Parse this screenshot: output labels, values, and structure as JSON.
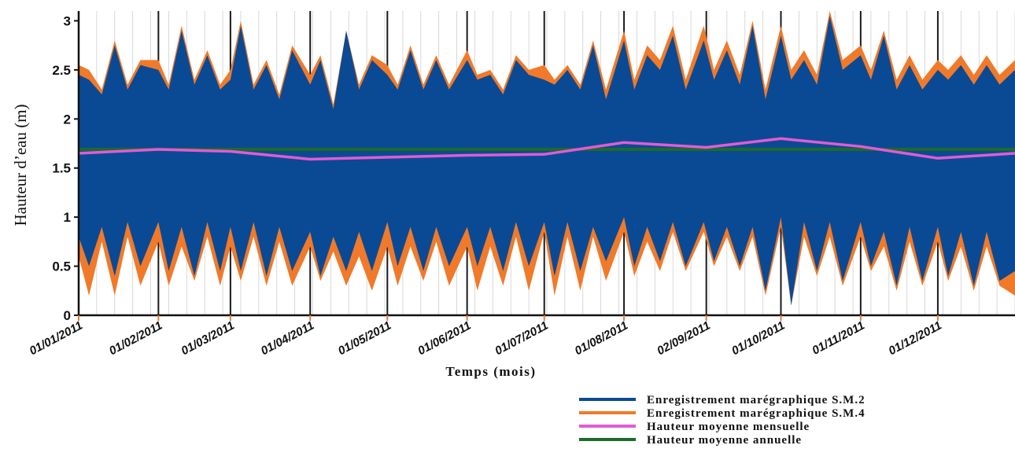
{
  "chart_data": {
    "type": "area",
    "xlabel": "Temps (mois)",
    "ylabel": "Hauteur d’eau (m)",
    "ylim": [
      0,
      3.1
    ],
    "yticks": [
      0,
      0.5,
      1,
      1.5,
      2,
      2.5,
      3
    ],
    "ytick_labels": [
      "0",
      "0.5",
      "1",
      "1.5",
      "2",
      "2.5",
      "3"
    ],
    "x_start": "01/01/2011",
    "x_end": "31/12/2011",
    "xtick_labels": [
      "01/01/2011",
      "01/02/2011",
      "01/03/2011",
      "01/04/2011",
      "01/05/2011",
      "01/06/2011",
      "01/07/2011",
      "01/08/2011",
      "02/09/2011",
      "01/10/2011",
      "01/11/2011",
      "01/12/2011"
    ],
    "legend_position": "bottom-right",
    "grid": "vertical",
    "series": [
      {
        "name": "Enregistrement marégraphique S.M.2",
        "color": "#0a4a94",
        "x": [
          "01/01/2011",
          "05/01/2011",
          "10/01/2011",
          "15/01/2011",
          "20/01/2011",
          "25/01/2011",
          "01/02/2011",
          "05/02/2011",
          "10/02/2011",
          "15/02/2011",
          "20/02/2011",
          "25/02/2011",
          "01/03/2011",
          "05/03/2011",
          "10/03/2011",
          "15/03/2011",
          "20/03/2011",
          "25/03/2011",
          "01/04/2011",
          "05/04/2011",
          "10/04/2011",
          "15/04/2011",
          "20/04/2011",
          "25/04/2011",
          "01/05/2011",
          "05/05/2011",
          "10/05/2011",
          "15/05/2011",
          "20/05/2011",
          "25/05/2011",
          "01/06/2011",
          "05/06/2011",
          "10/06/2011",
          "15/06/2011",
          "20/06/2011",
          "25/06/2011",
          "01/07/2011",
          "05/07/2011",
          "10/07/2011",
          "15/07/2011",
          "20/07/2011",
          "25/07/2011",
          "01/08/2011",
          "05/08/2011",
          "10/08/2011",
          "15/08/2011",
          "20/08/2011",
          "25/08/2011",
          "01/09/2011",
          "05/09/2011",
          "10/09/2011",
          "15/09/2011",
          "20/09/2011",
          "25/09/2011",
          "01/10/2011",
          "05/10/2011",
          "10/10/2011",
          "15/10/2011",
          "20/10/2011",
          "25/10/2011",
          "01/11/2011",
          "05/11/2011",
          "10/11/2011",
          "15/11/2011",
          "20/11/2011",
          "25/11/2011",
          "01/12/2011",
          "05/12/2011",
          "10/12/2011",
          "15/12/2011",
          "20/12/2011",
          "25/12/2011",
          "31/12/2011"
        ],
        "high": [
          2.45,
          2.4,
          2.25,
          2.75,
          2.3,
          2.55,
          2.5,
          2.3,
          2.9,
          2.35,
          2.65,
          2.3,
          2.4,
          2.95,
          2.3,
          2.55,
          2.2,
          2.7,
          2.35,
          2.6,
          2.1,
          2.9,
          2.3,
          2.6,
          2.45,
          2.3,
          2.7,
          2.3,
          2.6,
          2.3,
          2.6,
          2.4,
          2.45,
          2.25,
          2.6,
          2.45,
          2.4,
          2.35,
          2.5,
          2.3,
          2.75,
          2.2,
          2.8,
          2.3,
          2.65,
          2.5,
          2.85,
          2.3,
          2.8,
          2.4,
          2.7,
          2.35,
          2.95,
          2.2,
          2.85,
          2.4,
          2.6,
          2.35,
          3.05,
          2.5,
          2.65,
          2.4,
          2.85,
          2.3,
          2.55,
          2.3,
          2.5,
          2.4,
          2.55,
          2.35,
          2.55,
          2.35,
          2.5
        ],
        "low": [
          0.8,
          0.5,
          0.9,
          0.4,
          0.95,
          0.5,
          0.95,
          0.45,
          0.9,
          0.4,
          0.95,
          0.45,
          0.9,
          0.45,
          0.95,
          0.4,
          0.9,
          0.45,
          0.85,
          0.4,
          0.8,
          0.45,
          0.85,
          0.45,
          0.95,
          0.5,
          0.9,
          0.45,
          0.9,
          0.5,
          0.9,
          0.5,
          0.9,
          0.45,
          0.95,
          0.5,
          0.95,
          0.4,
          0.95,
          0.45,
          0.9,
          0.55,
          1.0,
          0.5,
          0.9,
          0.55,
          0.95,
          0.5,
          0.95,
          0.55,
          0.9,
          0.5,
          0.9,
          0.25,
          1.0,
          0.1,
          0.95,
          0.45,
          0.95,
          0.35,
          0.95,
          0.5,
          0.85,
          0.3,
          0.9,
          0.35,
          0.9,
          0.4,
          0.85,
          0.3,
          0.85,
          0.35,
          0.45
        ]
      },
      {
        "name": "Enregistrement marégraphique S.M.4",
        "color": "#f07a2a",
        "x": [
          "01/01/2011",
          "05/01/2011",
          "10/01/2011",
          "15/01/2011",
          "20/01/2011",
          "25/01/2011",
          "01/02/2011",
          "05/02/2011",
          "10/02/2011",
          "15/02/2011",
          "20/02/2011",
          "25/02/2011",
          "01/03/2011",
          "05/03/2011",
          "10/03/2011",
          "15/03/2011",
          "20/03/2011",
          "25/03/2011",
          "01/04/2011",
          "05/04/2011",
          "10/04/2011",
          "15/04/2011",
          "20/04/2011",
          "25/04/2011",
          "01/05/2011",
          "05/05/2011",
          "10/05/2011",
          "15/05/2011",
          "20/05/2011",
          "25/05/2011",
          "01/06/2011",
          "05/06/2011",
          "10/06/2011",
          "15/06/2011",
          "20/06/2011",
          "25/06/2011",
          "01/07/2011",
          "05/07/2011",
          "10/07/2011",
          "15/07/2011",
          "20/07/2011",
          "25/07/2011",
          "01/08/2011",
          "05/08/2011",
          "10/08/2011",
          "15/08/2011",
          "20/08/2011",
          "25/08/2011",
          "01/09/2011",
          "05/09/2011",
          "10/09/2011",
          "15/09/2011",
          "20/09/2011",
          "25/09/2011",
          "01/10/2011",
          "05/10/2011",
          "10/10/2011",
          "15/10/2011",
          "20/10/2011",
          "25/10/2011",
          "01/11/2011",
          "05/11/2011",
          "10/11/2011",
          "15/11/2011",
          "20/11/2011",
          "25/11/2011",
          "01/12/2011",
          "05/12/2011",
          "10/12/2011",
          "15/12/2011",
          "20/12/2011",
          "25/12/2011",
          "31/12/2011"
        ],
        "high": [
          2.55,
          2.5,
          2.3,
          2.8,
          2.35,
          2.6,
          2.6,
          2.35,
          2.95,
          2.4,
          2.7,
          2.35,
          2.5,
          3.0,
          2.35,
          2.6,
          2.25,
          2.75,
          2.45,
          2.65,
          2.15,
          2.9,
          2.35,
          2.65,
          2.55,
          2.35,
          2.75,
          2.35,
          2.65,
          2.35,
          2.7,
          2.45,
          2.5,
          2.3,
          2.65,
          2.5,
          2.55,
          2.4,
          2.55,
          2.35,
          2.8,
          2.3,
          2.9,
          2.4,
          2.75,
          2.6,
          2.95,
          2.4,
          2.95,
          2.5,
          2.8,
          2.45,
          3.0,
          2.3,
          2.95,
          2.5,
          2.7,
          2.45,
          3.1,
          2.6,
          2.75,
          2.5,
          2.9,
          2.4,
          2.65,
          2.4,
          2.6,
          2.5,
          2.65,
          2.45,
          2.65,
          2.45,
          2.6
        ],
        "low": [
          0.6,
          0.2,
          0.75,
          0.2,
          0.8,
          0.3,
          0.75,
          0.3,
          0.7,
          0.35,
          0.8,
          0.3,
          0.7,
          0.35,
          0.8,
          0.3,
          0.75,
          0.3,
          0.7,
          0.35,
          0.65,
          0.3,
          0.6,
          0.25,
          0.7,
          0.3,
          0.7,
          0.35,
          0.75,
          0.3,
          0.7,
          0.25,
          0.7,
          0.3,
          0.8,
          0.25,
          0.85,
          0.2,
          0.8,
          0.25,
          0.8,
          0.35,
          0.85,
          0.4,
          0.75,
          0.45,
          0.85,
          0.45,
          0.85,
          0.5,
          0.8,
          0.45,
          0.8,
          0.2,
          0.9,
          0.1,
          0.8,
          0.4,
          0.8,
          0.3,
          0.8,
          0.45,
          0.7,
          0.25,
          0.75,
          0.3,
          0.75,
          0.35,
          0.7,
          0.25,
          0.7,
          0.3,
          0.2
        ]
      },
      {
        "name": "Hauteur moyenne mensuelle",
        "color": "#e25bd3",
        "x": [
          "01/01/2011",
          "01/02/2011",
          "01/03/2011",
          "01/04/2011",
          "01/05/2011",
          "01/06/2011",
          "01/07/2011",
          "01/08/2011",
          "02/09/2011",
          "01/10/2011",
          "01/11/2011",
          "01/12/2011",
          "31/12/2011"
        ],
        "values": [
          1.65,
          1.69,
          1.67,
          1.59,
          1.61,
          1.63,
          1.64,
          1.76,
          1.71,
          1.8,
          1.72,
          1.6,
          1.65
        ]
      },
      {
        "name": "Hauteur moyenne annuelle",
        "color": "#1d6b2a",
        "x": [
          "01/01/2011",
          "31/12/2011"
        ],
        "values": [
          1.69,
          1.69
        ]
      }
    ]
  }
}
